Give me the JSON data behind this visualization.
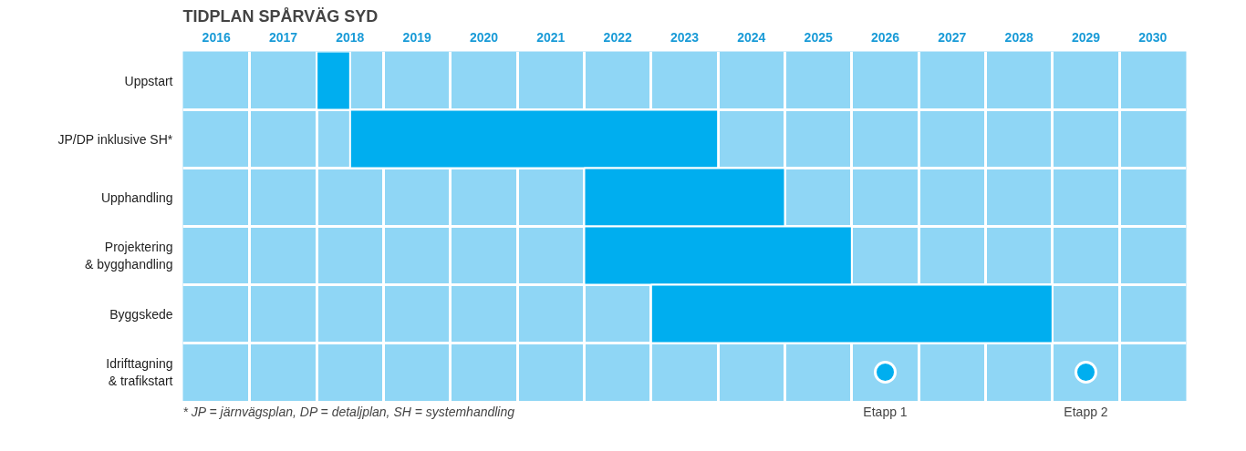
{
  "chart_data": {
    "type": "bar",
    "orientation": "horizontal",
    "title": "TIDPLAN SPÅRVÄG SYD",
    "categories": [
      "Uppstart",
      "JP/DP inklusive SH*",
      "Upphandling",
      "Projektering & bygghandling",
      "Byggskede",
      "Idrifttagning & trafikstart"
    ],
    "xlim": [
      2016,
      2031
    ],
    "xticks": [
      {
        "value": 2016.5,
        "label": "2016"
      },
      {
        "value": 2017.5,
        "label": "2017"
      },
      {
        "value": 2018.5,
        "label": "2018"
      },
      {
        "value": 2019.5,
        "label": "2019"
      },
      {
        "value": 2020.5,
        "label": "2020"
      },
      {
        "value": 2021.5,
        "label": "2021"
      },
      {
        "value": 2022.5,
        "label": "2022"
      },
      {
        "value": 2023.5,
        "label": "2023"
      },
      {
        "value": 2024.5,
        "label": "2024"
      },
      {
        "value": 2025.5,
        "label": "2025"
      },
      {
        "value": 2026.5,
        "label": "2026"
      },
      {
        "value": 2027.5,
        "label": "2027"
      },
      {
        "value": 2028.5,
        "label": "2028"
      },
      {
        "value": 2029.5,
        "label": "2029"
      },
      {
        "value": 2030.5,
        "label": "2030"
      }
    ],
    "series": [
      {
        "color": "#00aeef",
        "base": [
          2018,
          2018.5,
          2022,
          2022,
          2023,
          null
        ],
        "values": [
          0.5,
          5.5,
          3,
          4,
          6,
          null
        ]
      },
      {
        "type": "scatter",
        "name": "Etapp 1",
        "color": "#00aeef",
        "marker": "circle",
        "values": [
          null,
          null,
          null,
          null,
          null,
          2026.5
        ]
      },
      {
        "type": "scatter",
        "name": "Etapp 2",
        "color": "#00aeef",
        "marker": "circle",
        "values": [
          null,
          null,
          null,
          null,
          null,
          2029.5
        ]
      }
    ],
    "grid": true,
    "annotations": [
      "* JP = järnvägsplan, DP = detaljplan, SH = systemhandling"
    ]
  }
}
